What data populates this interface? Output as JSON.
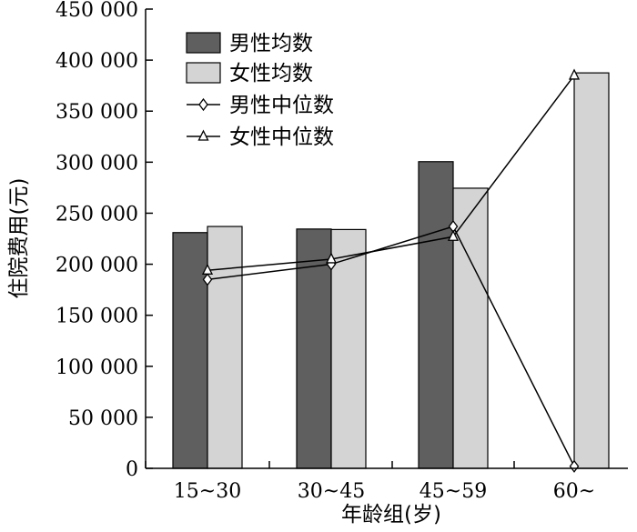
{
  "chart_data": {
    "type": "bar",
    "categories": [
      "15~30",
      "30~45",
      "45~59",
      "60~"
    ],
    "series": [
      {
        "name": "男性均数",
        "kind": "bar",
        "color": "#5f5f5f",
        "values": [
          231000,
          234500,
          300500,
          0
        ]
      },
      {
        "name": "女性均数",
        "kind": "bar",
        "color": "#d4d4d4",
        "values": [
          237000,
          234000,
          274500,
          387500
        ]
      },
      {
        "name": "男性中位数",
        "kind": "line",
        "marker": "diamond",
        "values": [
          185000,
          200000,
          237000,
          2000
        ]
      },
      {
        "name": "女性中位数",
        "kind": "line",
        "marker": "triangle",
        "values": [
          194000,
          205000,
          227000,
          385000
        ]
      }
    ],
    "yticks": [
      "0",
      "50 000",
      "100 000",
      "150 000",
      "200 000",
      "250 000",
      "300 000",
      "350 000",
      "400 000",
      "450 000"
    ],
    "title": "",
    "xlabel": "年龄组(岁)",
    "ylabel": "住院费用(元)",
    "ylim": [
      0,
      450000
    ],
    "grid": false,
    "legend_position": "top-left"
  }
}
